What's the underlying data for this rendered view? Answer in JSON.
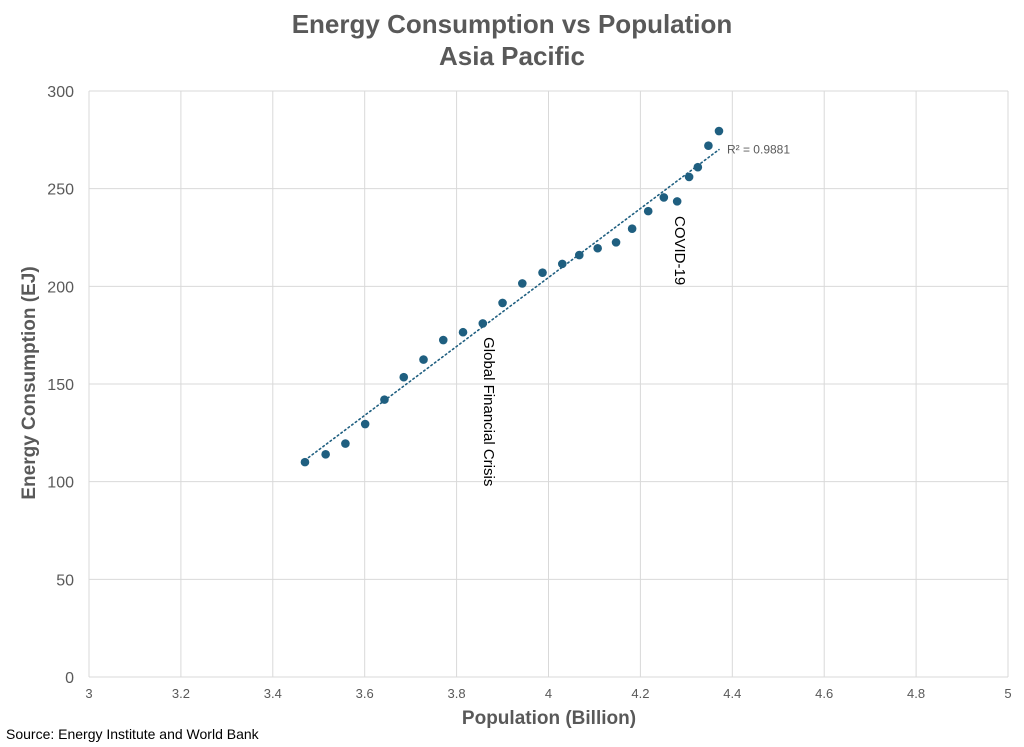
{
  "chart_data": {
    "type": "scatter",
    "title": "Energy Consumption vs Population",
    "subtitle": "Asia Pacific",
    "xlabel": "Population (Billion)",
    "ylabel": "Energy Consumption (EJ)",
    "xlim": [
      3,
      5
    ],
    "ylim": [
      0,
      300
    ],
    "x_ticks": [
      3,
      3.2,
      3.4,
      3.6,
      3.8,
      4,
      4.2,
      4.4,
      4.6,
      4.8,
      5
    ],
    "x_tick_labels": [
      "3",
      "3.2",
      "3.4",
      "3.6",
      "3.8",
      "4",
      "4.2",
      "4.4",
      "4.6",
      "4.8",
      "5"
    ],
    "y_ticks": [
      0,
      50,
      100,
      150,
      200,
      250,
      300
    ],
    "y_tick_labels": [
      "0",
      "50",
      "100",
      "150",
      "200",
      "250",
      "300"
    ],
    "grid": true,
    "marker_color": "#1f5f80",
    "trendline_color": "#1f5f80",
    "series": [
      {
        "name": "Asia Pacific",
        "points": [
          {
            "x": 3.47,
            "y": 110
          },
          {
            "x": 3.515,
            "y": 114
          },
          {
            "x": 3.558,
            "y": 119.5
          },
          {
            "x": 3.601,
            "y": 129.5
          },
          {
            "x": 3.643,
            "y": 142
          },
          {
            "x": 3.685,
            "y": 153.5
          },
          {
            "x": 3.728,
            "y": 162.5
          },
          {
            "x": 3.771,
            "y": 172.5
          },
          {
            "x": 3.814,
            "y": 176.5
          },
          {
            "x": 3.857,
            "y": 181
          },
          {
            "x": 3.9,
            "y": 191.5
          },
          {
            "x": 3.943,
            "y": 201.5
          },
          {
            "x": 3.987,
            "y": 207
          },
          {
            "x": 4.03,
            "y": 211.5
          },
          {
            "x": 4.067,
            "y": 216
          },
          {
            "x": 4.107,
            "y": 219.5
          },
          {
            "x": 4.147,
            "y": 222.5
          },
          {
            "x": 4.182,
            "y": 229.5
          },
          {
            "x": 4.217,
            "y": 238.5
          },
          {
            "x": 4.251,
            "y": 245.5
          },
          {
            "x": 4.28,
            "y": 243.5
          },
          {
            "x": 4.306,
            "y": 256
          },
          {
            "x": 4.325,
            "y": 261
          },
          {
            "x": 4.348,
            "y": 272
          },
          {
            "x": 4.371,
            "y": 279.5
          }
        ]
      }
    ],
    "trendline": {
      "type": "linear-dotted",
      "x_start": 3.47,
      "y_start": 111,
      "x_end": 4.371,
      "y_end": 270,
      "label": "R² = 0.9881"
    },
    "annotations": [
      {
        "text": "Global Financial Crisis",
        "x": 3.86,
        "y": 174,
        "rotation": 90
      },
      {
        "text": "COVID-19",
        "x": 4.275,
        "y": 236,
        "rotation": 90
      }
    ],
    "source": "Source: Energy Institute and World Bank"
  }
}
